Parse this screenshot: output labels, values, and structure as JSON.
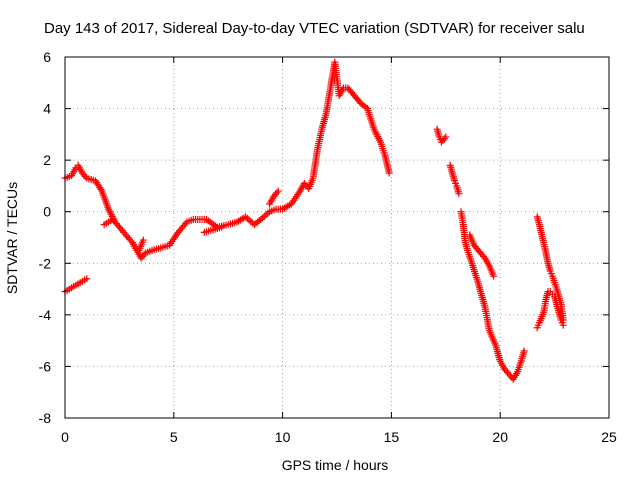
{
  "chart_data": {
    "type": "scatter",
    "title": "Day 143 of 2017, Sidereal Day-to-day VTEC variation (SDTVAR) for receiver salu",
    "xlabel": "GPS time / hours",
    "ylabel": "SDTVAR / TECUs",
    "xlim": [
      0,
      25
    ],
    "ylim": [
      -8,
      6
    ],
    "xticks": [
      "0",
      "5",
      "10",
      "15",
      "20",
      "25"
    ],
    "yticks": [
      "-8",
      "-6",
      "-4",
      "-2",
      "0",
      "2",
      "4",
      "6"
    ],
    "grid": true,
    "marker": "+",
    "marker_color": "#ff0000",
    "series": [
      {
        "x": [
          0.0,
          0.3,
          0.5,
          0.6,
          0.8,
          1.0,
          1.4,
          1.7,
          2.0,
          2.3,
          2.7,
          3.1,
          3.5,
          3.7,
          4.0,
          4.4,
          4.8,
          5.2,
          5.6,
          5.9,
          6.2,
          6.5,
          7.0,
          7.5,
          7.9,
          8.3,
          8.7,
          9.0,
          9.4,
          9.7,
          10.0,
          10.4,
          10.8,
          11.0,
          11.2,
          11.4,
          11.6,
          11.8,
          12.0,
          12.2,
          12.4,
          12.6,
          12.8,
          13.0,
          13.3,
          13.6,
          13.9,
          14.2,
          14.5,
          14.7,
          14.9
        ],
        "y": [
          1.3,
          1.4,
          1.7,
          1.8,
          1.5,
          1.3,
          1.2,
          0.8,
          0.1,
          -0.4,
          -0.8,
          -1.2,
          -1.8,
          -1.6,
          -1.5,
          -1.4,
          -1.3,
          -0.8,
          -0.4,
          -0.3,
          -0.3,
          -0.3,
          -0.6,
          -0.5,
          -0.4,
          -0.2,
          -0.5,
          -0.3,
          0.0,
          0.1,
          0.1,
          0.3,
          0.8,
          1.1,
          0.9,
          1.3,
          2.4,
          3.2,
          3.8,
          4.8,
          5.8,
          4.5,
          4.8,
          4.8,
          4.5,
          4.2,
          4.0,
          3.2,
          2.7,
          2.2,
          1.5
        ]
      },
      {
        "x": [
          0.0,
          0.2,
          0.4,
          0.6,
          0.8,
          1.0
        ],
        "y": [
          -3.1,
          -3.0,
          -2.9,
          -2.8,
          -2.7,
          -2.6
        ]
      },
      {
        "x": [
          1.8,
          2.0,
          2.2
        ],
        "y": [
          -0.5,
          -0.4,
          -0.3
        ]
      },
      {
        "x": [
          3.4,
          3.6
        ],
        "y": [
          -1.5,
          -1.1
        ]
      },
      {
        "x": [
          6.4,
          6.8,
          7.2
        ],
        "y": [
          -0.8,
          -0.7,
          -0.6
        ]
      },
      {
        "x": [
          9.4,
          9.6,
          9.8
        ],
        "y": [
          0.3,
          0.6,
          0.8
        ]
      },
      {
        "x": [
          17.1,
          17.2,
          17.3,
          17.5
        ],
        "y": [
          3.2,
          2.9,
          2.7,
          2.9
        ]
      },
      {
        "x": [
          17.7,
          17.8,
          17.9,
          18.0,
          18.1
        ],
        "y": [
          1.8,
          1.5,
          1.2,
          1.0,
          0.7
        ]
      },
      {
        "x": [
          18.2,
          18.3,
          18.4,
          18.5,
          18.7,
          19.0,
          19.3,
          19.5,
          19.8,
          20.0,
          20.2,
          20.4,
          20.6,
          20.8,
          21.0,
          21.1
        ],
        "y": [
          0.0,
          -0.5,
          -1.2,
          -1.5,
          -2.0,
          -2.8,
          -3.7,
          -4.6,
          -5.2,
          -5.8,
          -6.1,
          -6.3,
          -6.5,
          -6.2,
          -5.7,
          -5.4
        ]
      },
      {
        "x": [
          18.6,
          18.8,
          19.1,
          19.3,
          19.5,
          19.7
        ],
        "y": [
          -0.9,
          -1.3,
          -1.6,
          -1.8,
          -2.1,
          -2.5
        ]
      },
      {
        "x": [
          21.7,
          21.8,
          22.0,
          22.1,
          22.2,
          22.3,
          22.4,
          22.6,
          22.8,
          22.9
        ],
        "y": [
          -0.2,
          -0.5,
          -1.2,
          -1.6,
          -2.0,
          -2.3,
          -2.5,
          -3.0,
          -3.6,
          -4.2
        ]
      },
      {
        "x": [
          21.7,
          21.8,
          22.0,
          22.1,
          22.2,
          22.3,
          22.4,
          22.5,
          22.6,
          22.7,
          22.8,
          22.9
        ],
        "y": [
          -4.5,
          -4.3,
          -3.9,
          -3.4,
          -3.1,
          -3.1,
          -3.2,
          -3.3,
          -3.6,
          -3.9,
          -4.2,
          -4.4
        ]
      }
    ]
  }
}
